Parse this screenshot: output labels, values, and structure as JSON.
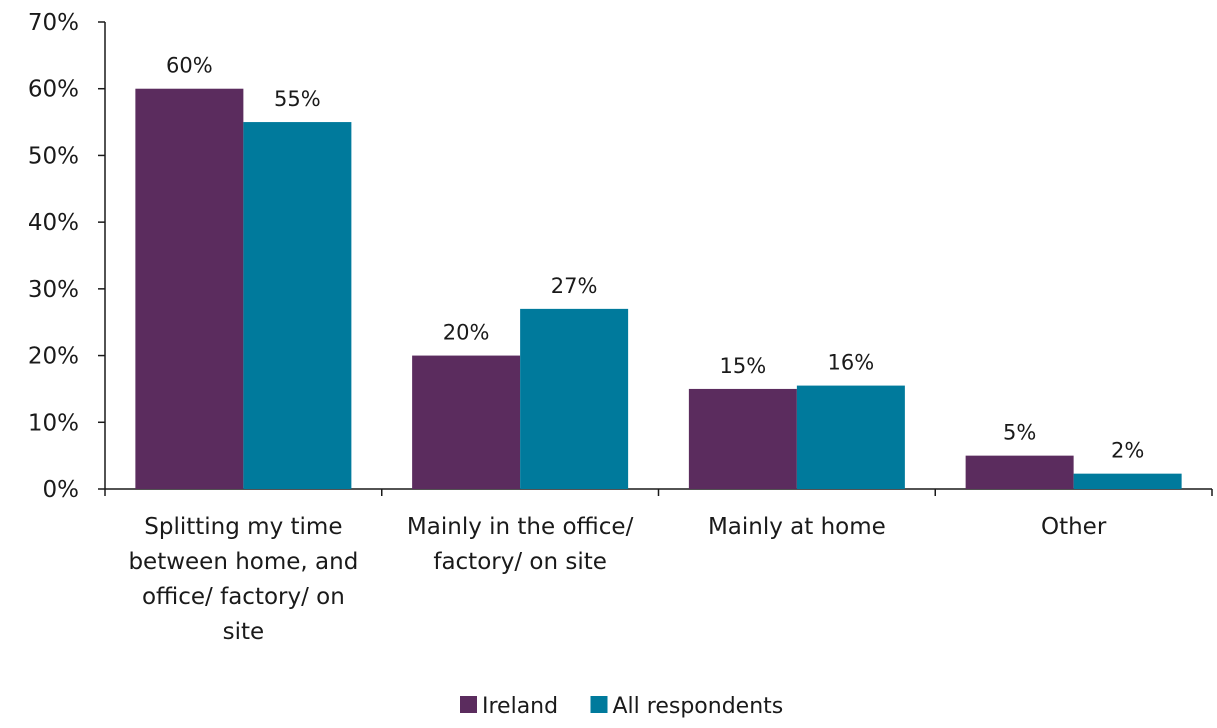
{
  "chart_data": {
    "type": "bar",
    "title": "",
    "xlabel": "",
    "ylabel": "",
    "ylim": [
      0,
      70
    ],
    "y_ticks": [
      0,
      10,
      20,
      30,
      40,
      50,
      60,
      70
    ],
    "y_tick_labels": [
      "0%",
      "10%",
      "20%",
      "30%",
      "40%",
      "50%",
      "60%",
      "70%"
    ],
    "grid": false,
    "legend_position": "bottom",
    "categories": [
      [
        "Splitting my time",
        "between home, and",
        "office/ factory/ on",
        "site"
      ],
      [
        "Mainly in the office/",
        "factory/ on site"
      ],
      [
        "Mainly at home"
      ],
      [
        "Other"
      ]
    ],
    "series": [
      {
        "name": "Ireland",
        "color": "#5b2c5e",
        "values": [
          60,
          20,
          15,
          5
        ],
        "labels": [
          "60%",
          "20%",
          "15%",
          "5%"
        ]
      },
      {
        "name": "All respondents",
        "color": "#007a9c",
        "values": [
          55,
          27,
          15.5,
          2.3
        ],
        "labels": [
          "55%",
          "27%",
          "16%",
          "2%"
        ]
      }
    ]
  }
}
